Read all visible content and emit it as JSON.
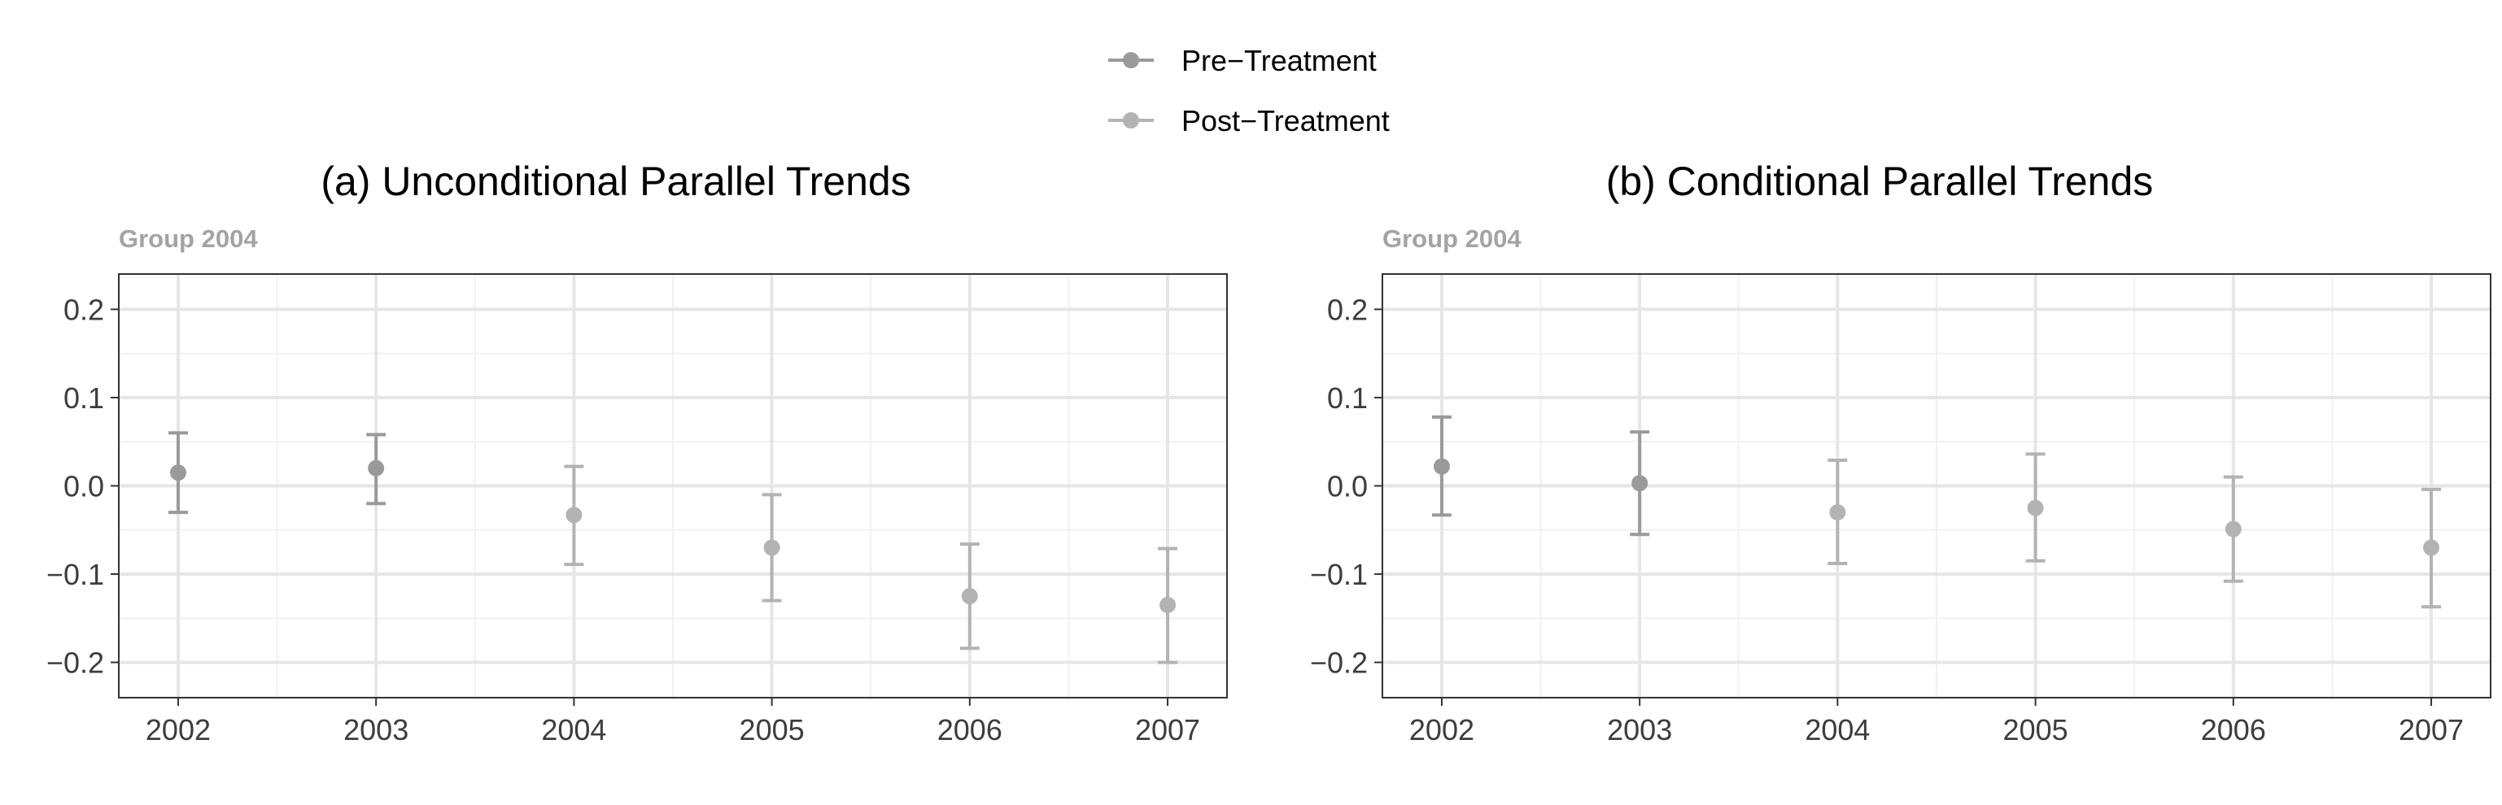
{
  "legend": [
    {
      "label": "Pre−Treatment",
      "color": "#9a9a9a"
    },
    {
      "label": "Post−Treatment",
      "color": "#b3b3b3"
    }
  ],
  "chart_data": [
    {
      "type": "scatter",
      "title": "(a) Unconditional Parallel Trends",
      "subtitle": "Group 2004",
      "xlabel": "",
      "ylabel": "",
      "x_ticks": [
        "2002",
        "2003",
        "2004",
        "2005",
        "2006",
        "2007"
      ],
      "y_ticks": [
        "0.2",
        "0.1",
        "0.0",
        "−0.1",
        "−0.2"
      ],
      "y_tick_values": [
        0.2,
        0.1,
        0.0,
        -0.1,
        -0.2
      ],
      "ylim": [
        -0.24,
        0.24
      ],
      "xlim": [
        2001.7,
        2007.3
      ],
      "grid": true,
      "series": [
        {
          "name": "Pre−Treatment",
          "color": "#9a9a9a",
          "points": [
            {
              "x": 2002,
              "y": 0.015,
              "lower": -0.03,
              "upper": 0.06
            },
            {
              "x": 2003,
              "y": 0.02,
              "lower": -0.02,
              "upper": 0.058
            }
          ]
        },
        {
          "name": "Post−Treatment",
          "color": "#b3b3b3",
          "points": [
            {
              "x": 2004,
              "y": -0.033,
              "lower": -0.089,
              "upper": 0.022
            },
            {
              "x": 2005,
              "y": -0.07,
              "lower": -0.13,
              "upper": -0.01
            },
            {
              "x": 2006,
              "y": -0.125,
              "lower": -0.184,
              "upper": -0.066
            },
            {
              "x": 2007,
              "y": -0.135,
              "lower": -0.2,
              "upper": -0.071
            }
          ]
        }
      ]
    },
    {
      "type": "scatter",
      "title": "(b) Conditional Parallel Trends",
      "subtitle": "Group 2004",
      "xlabel": "",
      "ylabel": "",
      "x_ticks": [
        "2002",
        "2003",
        "2004",
        "2005",
        "2006",
        "2007"
      ],
      "y_ticks": [
        "0.2",
        "0.1",
        "0.0",
        "−0.1",
        "−0.2"
      ],
      "y_tick_values": [
        0.2,
        0.1,
        0.0,
        -0.1,
        -0.2
      ],
      "ylim": [
        -0.24,
        0.24
      ],
      "xlim": [
        2001.7,
        2007.3
      ],
      "grid": true,
      "series": [
        {
          "name": "Pre−Treatment",
          "color": "#9a9a9a",
          "points": [
            {
              "x": 2002,
              "y": 0.022,
              "lower": -0.033,
              "upper": 0.078
            },
            {
              "x": 2003,
              "y": 0.003,
              "lower": -0.055,
              "upper": 0.061
            }
          ]
        },
        {
          "name": "Post−Treatment",
          "color": "#b3b3b3",
          "points": [
            {
              "x": 2004,
              "y": -0.03,
              "lower": -0.088,
              "upper": 0.029
            },
            {
              "x": 2005,
              "y": -0.025,
              "lower": -0.085,
              "upper": 0.036
            },
            {
              "x": 2006,
              "y": -0.049,
              "lower": -0.108,
              "upper": 0.01
            },
            {
              "x": 2007,
              "y": -0.07,
              "lower": -0.137,
              "upper": -0.004
            }
          ]
        }
      ]
    }
  ]
}
